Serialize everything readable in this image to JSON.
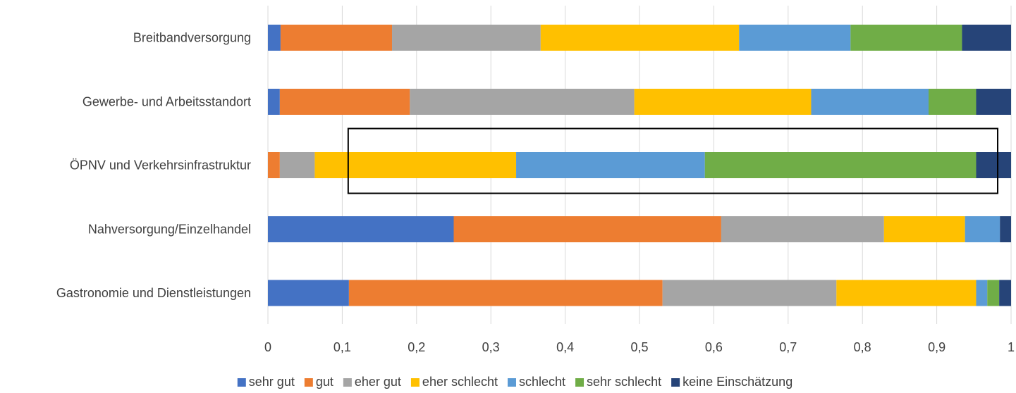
{
  "chart_data": {
    "type": "bar",
    "orientation": "horizontal",
    "stacked": true,
    "categories": [
      "Breitbandversorgung",
      "Gewerbe- und Arbeitsstandort",
      "ÖPNV und Verkehrsinfrastruktur",
      "Nahversorgung/Einzelhandel",
      "Gastronomie und Dienstleistungen"
    ],
    "series": [
      {
        "name": "sehr gut",
        "color": "#4472C4",
        "values": [
          0.017,
          0.016,
          0.0,
          0.25,
          0.109
        ]
      },
      {
        "name": "gut",
        "color": "#ED7D31",
        "values": [
          0.15,
          0.175,
          0.016,
          0.36,
          0.422
        ]
      },
      {
        "name": "eher gut",
        "color": "#A5A5A5",
        "values": [
          0.2,
          0.302,
          0.047,
          0.219,
          0.234
        ]
      },
      {
        "name": "eher schlecht",
        "color": "#FFC000",
        "values": [
          0.267,
          0.238,
          0.271,
          0.109,
          0.188
        ]
      },
      {
        "name": "schlecht",
        "color": "#5B9BD5",
        "values": [
          0.15,
          0.158,
          0.254,
          0.047,
          0.015
        ]
      },
      {
        "name": "sehr schlecht",
        "color": "#70AD47",
        "values": [
          0.15,
          0.064,
          0.365,
          0.0,
          0.016
        ]
      },
      {
        "name": "keine Einschätzung",
        "color": "#264478",
        "values": [
          0.066,
          0.047,
          0.047,
          0.015,
          0.016
        ]
      }
    ],
    "xlim": [
      0,
      1
    ],
    "xticks": [
      "0",
      "0,1",
      "0,2",
      "0,3",
      "0,4",
      "0,5",
      "0,6",
      "0,7",
      "0,8",
      "0,9",
      "1"
    ],
    "grid": true,
    "legend_position": "bottom",
    "annotation": {
      "type": "rectangle",
      "category": "ÖPNV und Verkehrsinfrastruktur",
      "x_from": 0.108,
      "x_to": 0.982
    }
  }
}
